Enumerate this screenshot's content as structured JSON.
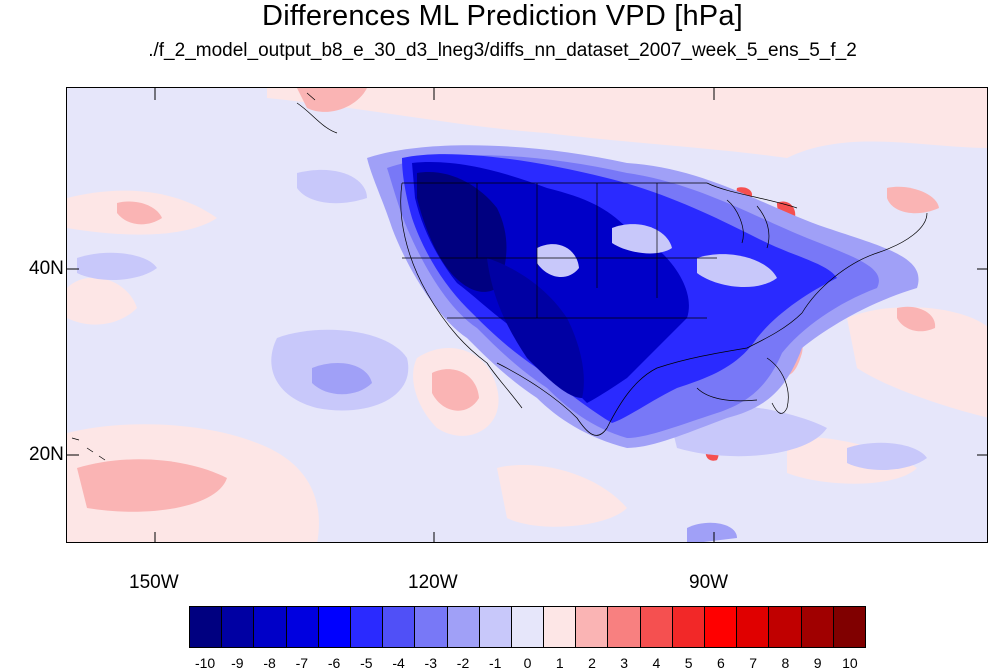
{
  "title": "Differences ML Prediction VPD [hPa]",
  "subtitle": "./f_2_model_output_b8_e_30_d3_lneg3/diffs_nn_dataset_2007_week_5_ens_5_f_2",
  "map": {
    "lat_labels": [
      "40N",
      "20N"
    ],
    "lon_labels": [
      "150W",
      "120W",
      "90W"
    ]
  },
  "colorbar": {
    "labels": [
      "-10",
      "-9",
      "-8",
      "-7",
      "-6",
      "-5",
      "-4",
      "-3",
      "-2",
      "-1",
      "0",
      "1",
      "2",
      "3",
      "4",
      "5",
      "6",
      "7",
      "8",
      "9",
      "10"
    ],
    "colors": [
      "#000080",
      "#0000a3",
      "#0000c8",
      "#0000e0",
      "#0000ff",
      "#2a2aff",
      "#5050f7",
      "#7878f7",
      "#a0a0f7",
      "#c8c8fa",
      "#e6e6fa",
      "#fde6e6",
      "#fab4b4",
      "#f88080",
      "#f55050",
      "#f22828",
      "#ff0000",
      "#e00000",
      "#c00000",
      "#a00000",
      "#800000"
    ]
  }
}
